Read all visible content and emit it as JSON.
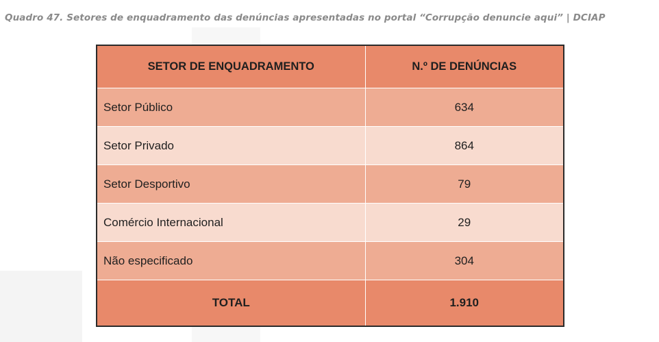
{
  "caption": "Quadro 47.  Setores de enquadramento das denúncias apresentadas no portal “Corrupção denuncie aqui” | DCIAP",
  "table": {
    "headers": {
      "sector": "SETOR DE ENQUADRAMENTO",
      "count": "N.º DE DENÚNCIAS"
    },
    "rows": [
      {
        "sector": "Setor Público",
        "count": "634"
      },
      {
        "sector": "Setor Privado",
        "count": "864"
      },
      {
        "sector": "Setor Desportivo",
        "count": "79"
      },
      {
        "sector": "Comércio Internacional",
        "count": "29"
      },
      {
        "sector": "Não especificado",
        "count": "304"
      }
    ],
    "total": {
      "label": "TOTAL",
      "value": "1.910"
    }
  },
  "colors": {
    "header_bg": "#e8896a",
    "row_dark": "#eeac93",
    "row_light": "#f8dbcf",
    "caption_text": "#8a8a8a"
  }
}
